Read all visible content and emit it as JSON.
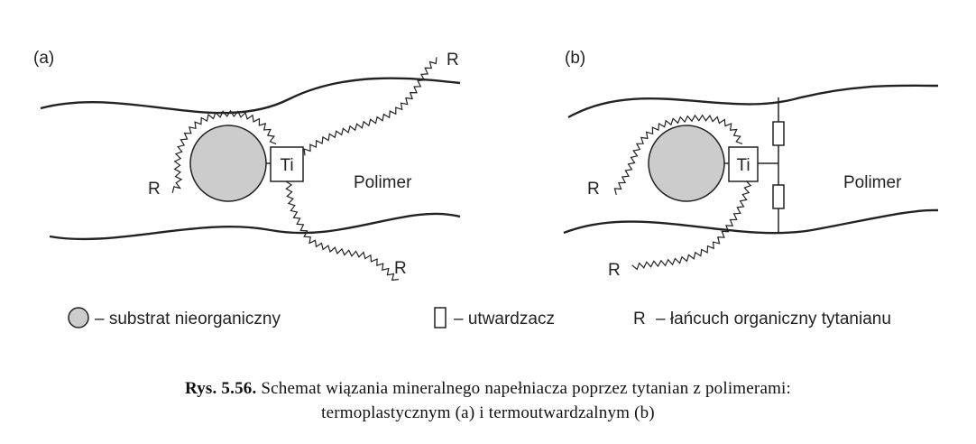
{
  "panel_a": {
    "label": "(a)",
    "ti_label": "Ti",
    "polymer_label": "Polimer",
    "r_labels": [
      "R",
      "R",
      "R"
    ]
  },
  "panel_b": {
    "label": "(b)",
    "ti_label": "Ti",
    "polymer_label": "Polimer",
    "r_labels": [
      "R",
      "R"
    ]
  },
  "legend": {
    "substrate": "– substrat nieorganiczny",
    "hardener": "– utwardzacz",
    "r_symbol": "R",
    "chain": "– łańcuch organiczny tytanianu"
  },
  "caption": {
    "number": "Rys. 5.56.",
    "line1": "Schemat wiązania mineralnego napełniacza poprzez tytanian z polimerami:",
    "line2": "termoplastycznym (a) i termoutwardzalnym (b)"
  },
  "colors": {
    "stroke": "#222222",
    "particle_fill": "#cccccc"
  }
}
